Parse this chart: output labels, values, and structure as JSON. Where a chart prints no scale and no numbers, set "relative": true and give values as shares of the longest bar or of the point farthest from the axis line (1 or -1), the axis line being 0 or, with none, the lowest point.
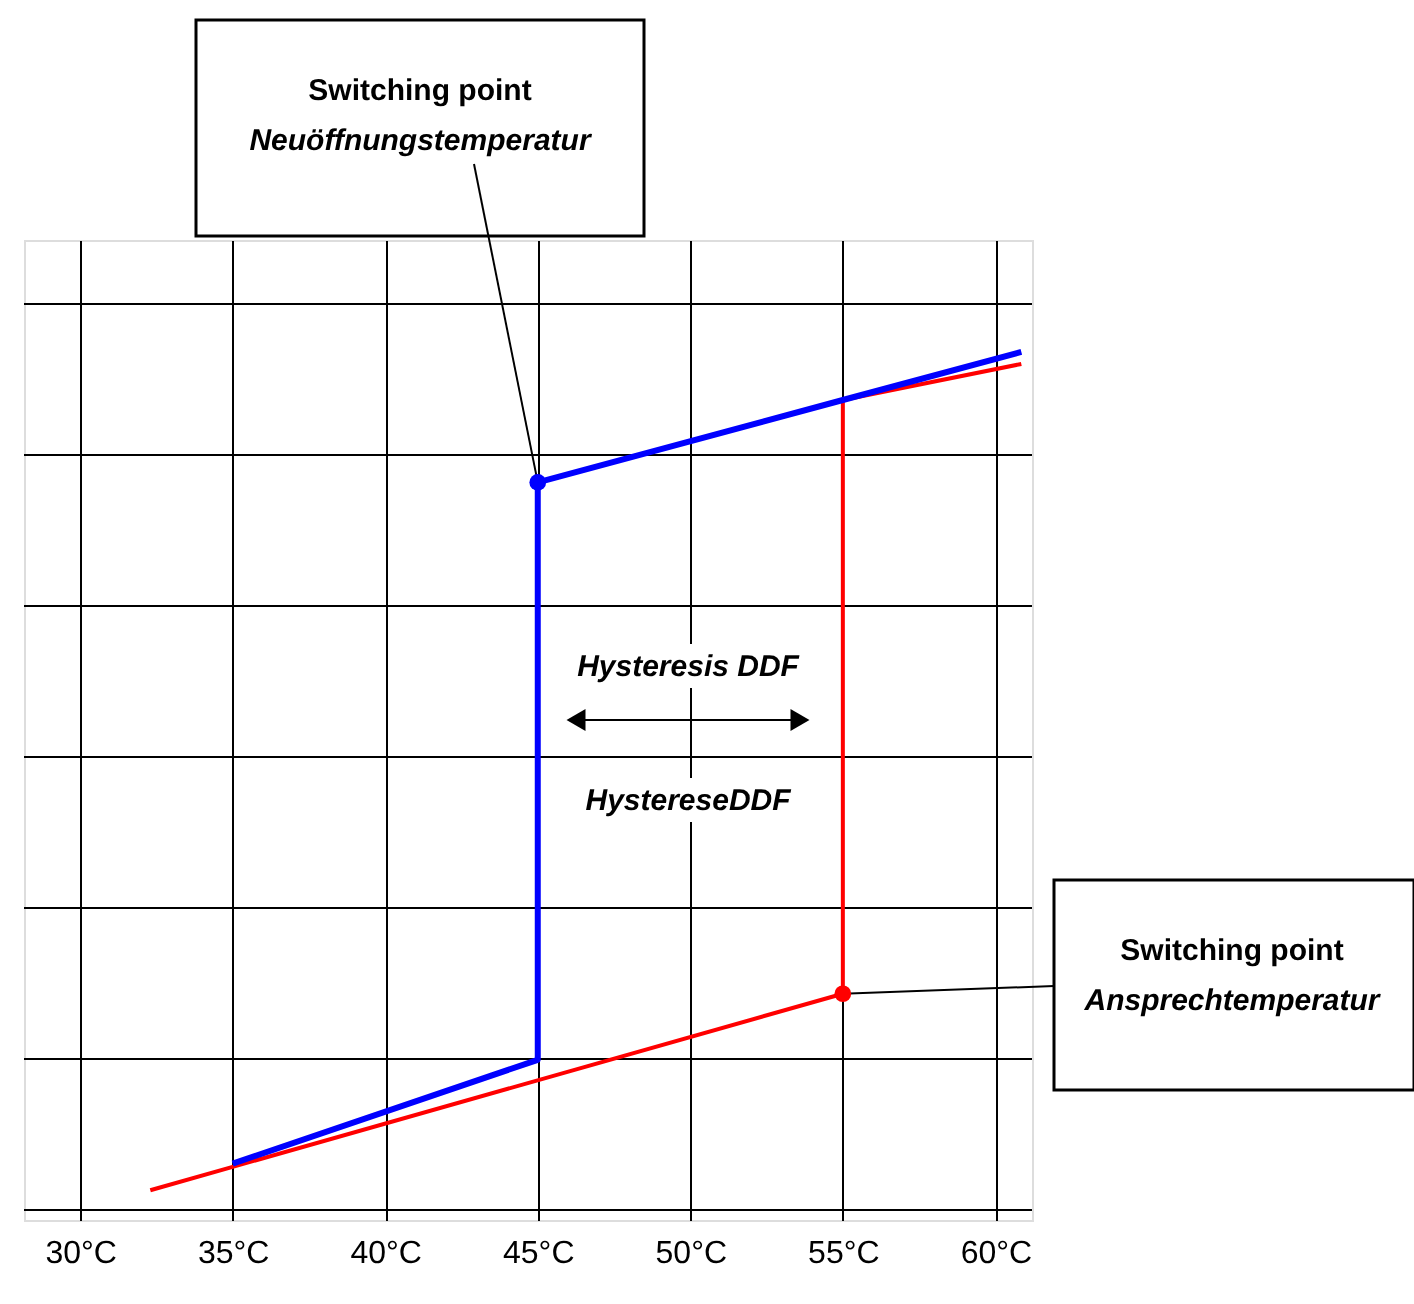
{
  "chart_data": {
    "type": "line",
    "relative": true,
    "xlim": [
      28.16,
      61.2
    ],
    "xticks": [
      {
        "value": 30,
        "label": "30°C"
      },
      {
        "value": 35,
        "label": "35°C"
      },
      {
        "value": 40,
        "label": "40°C"
      },
      {
        "value": 45,
        "label": "45°C"
      },
      {
        "value": 50,
        "label": "50°C"
      },
      {
        "value": 55,
        "label": "55°C"
      },
      {
        "value": 60,
        "label": "60°C"
      }
    ],
    "grid": true,
    "series": [
      {
        "color": "#ff0000",
        "x": [
          32.3,
          55,
          55,
          60.85
        ],
        "values": [
          0.023,
          0.252,
          0.944,
          0.986
        ]
      },
      {
        "color": "#0000ff",
        "x": [
          60.85,
          55,
          45,
          45,
          35
        ],
        "values": [
          1,
          0.944,
          0.848,
          0.175,
          0.054
        ]
      }
    ],
    "annotations": [
      {
        "text": "Switching point\nNeuöffnungstemperatur",
        "x": 45,
        "y": 0.848
      },
      "Hysteresis DDF",
      "HystereseDDF",
      {
        "text": "Switching point\nAnsprechtemperatur",
        "x": 55,
        "y": 0.252
      }
    ]
  }
}
